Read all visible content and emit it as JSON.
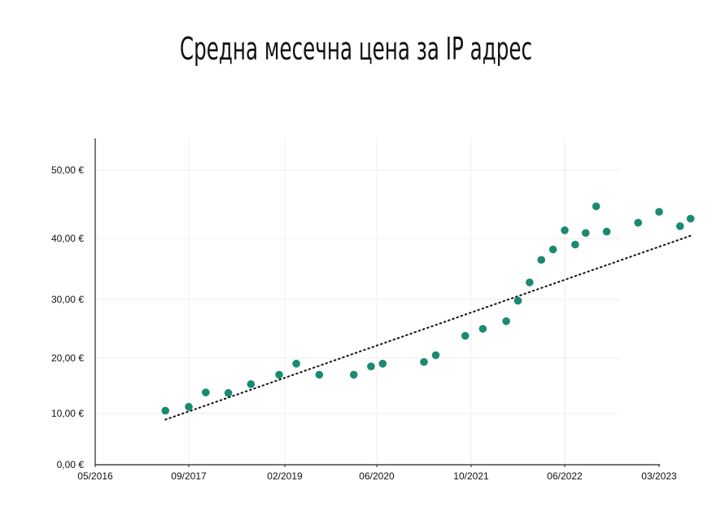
{
  "chart_data": {
    "type": "scatter",
    "title": "Средна месечна цена за IP адрес",
    "xlabel": "",
    "ylabel": "",
    "x_ticks": [
      "05/2016",
      "09/2017",
      "02/2019",
      "06/2020",
      "10/2021",
      "06/2022",
      "03/2023"
    ],
    "y_ticks": [
      "0,00 €",
      "10,00 €",
      "20,00 €",
      "30,00 €",
      "40,00 €",
      "50,00 €"
    ],
    "grid": true,
    "legend": "none",
    "colors": {
      "points": "#1a8a72",
      "trendline": "#111111",
      "grid": "#eeeeee",
      "axis": "#222222"
    },
    "series": [
      {
        "points": [
          [
            "2017-05",
            10.5
          ],
          [
            "2017-09",
            11.2
          ],
          [
            "2017-12",
            13.8
          ],
          [
            "2018-04",
            13.7
          ],
          [
            "2018-08",
            15.3
          ],
          [
            "2019-01",
            17.0
          ],
          [
            "2019-04",
            19.0
          ],
          [
            "2019-08",
            17.0
          ],
          [
            "2020-02",
            17.0
          ],
          [
            "2020-05",
            18.5
          ],
          [
            "2020-07",
            19.0
          ],
          [
            "2021-02",
            19.3
          ],
          [
            "2021-04",
            20.5
          ],
          [
            "2021-09",
            23.8
          ],
          [
            "2021-11",
            25.0
          ],
          [
            "2022-01",
            26.3
          ],
          [
            "2022-02",
            29.8
          ],
          [
            "2022-03",
            32.8
          ],
          [
            "2022-04",
            36.5
          ],
          [
            "2022-05",
            38.2
          ],
          [
            "2022-06",
            41.2
          ],
          [
            "2022-07",
            39.0
          ],
          [
            "2022-08",
            40.8
          ],
          [
            "2022-09",
            44.7
          ],
          [
            "2022-10",
            41.0
          ],
          [
            "2023-01",
            42.3
          ],
          [
            "2023-03",
            43.9
          ],
          [
            "2023-05",
            41.8
          ],
          [
            "2023-06",
            42.9
          ]
        ]
      }
    ],
    "trendline": {
      "style": "dotted",
      "from": [
        "2017-05",
        8.8
      ],
      "to": [
        "2023-06",
        40.4
      ]
    }
  }
}
